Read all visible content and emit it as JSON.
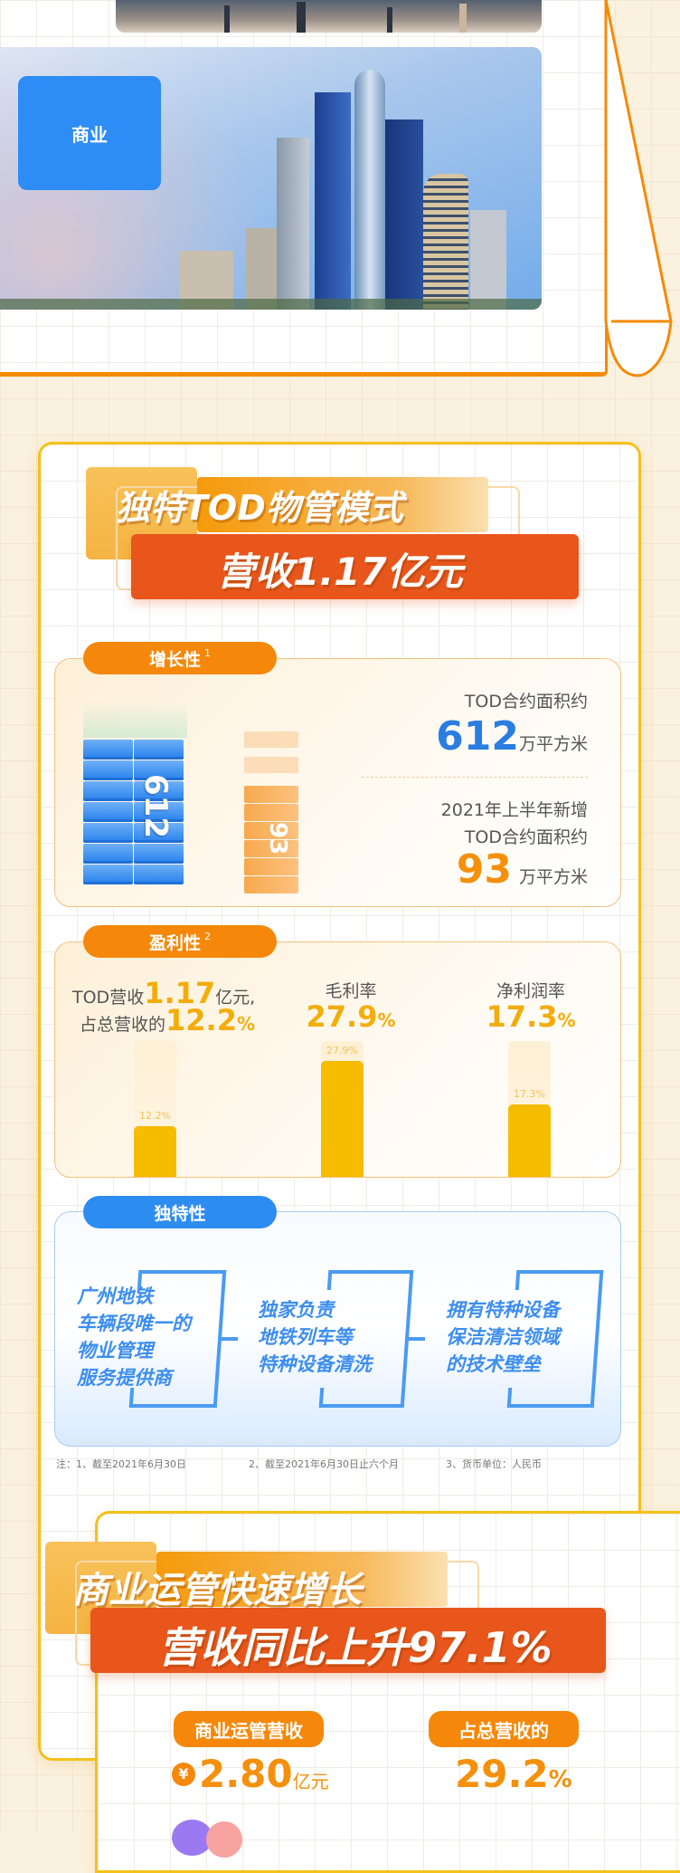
{
  "colors": {
    "accent_orange": "#f58a07",
    "band_red": "#e8561b",
    "bar_yellow": "#f6bc00",
    "blue": "#2a7de1",
    "cream_bg": "#fbf1df"
  },
  "top": {
    "commercial_tag": "商业"
  },
  "tod": {
    "title_line1": "独特TOD物管模式",
    "title_line2": "营收1.17亿元",
    "growth": {
      "label": "增长性",
      "footnote": "1",
      "block1_value": "612",
      "block2_value": "93",
      "stat1_label": "TOD合约面积约",
      "stat1_value": "612",
      "stat1_unit": "万平方米",
      "stat2_label_line1": "2021年上半年新增",
      "stat2_label_line2": "TOD合约面积约",
      "stat2_value": "93",
      "stat2_unit": "万平方米"
    },
    "profit": {
      "label": "盈利性",
      "footnote": "2",
      "col1_prefix": "TOD营收",
      "col1_value": "1.17",
      "col1_suffix": "亿元,",
      "col1_line2_prefix": "占总营收的",
      "col1_line2_value": "12.2",
      "pct": "%",
      "col2_label": "毛利率",
      "col2_value": "27.9",
      "col3_label": "净利润率",
      "col3_value": "17.3",
      "bars": [
        {
          "label": "12.2%",
          "value": 12.2
        },
        {
          "label": "27.9%",
          "value": 27.9
        },
        {
          "label": "17.3%",
          "value": 17.3
        }
      ]
    },
    "unique": {
      "label": "独特性",
      "items": [
        [
          "广州地铁",
          "车辆段唯一的",
          "物业管理",
          "服务提供商"
        ],
        [
          "独家负责",
          "地铁列车等",
          "特种设备清洗"
        ],
        [
          "拥有特种设备",
          "保洁清洁领域",
          "的技术壁垒"
        ]
      ]
    },
    "notes": [
      "注：1、截至2021年6月30日",
      "2、截至2021年6月30日止六个月",
      "3、货币单位：人民币"
    ]
  },
  "commercial": {
    "title_line1": "商业运管快速增长",
    "title_line2": "营收同比上升97.1%",
    "pill1": "商业运管营收",
    "pill2": "占总营收的",
    "yen": "¥",
    "value1": "2.80",
    "unit1": "亿元",
    "value2": "29.2",
    "pct": "%"
  }
}
